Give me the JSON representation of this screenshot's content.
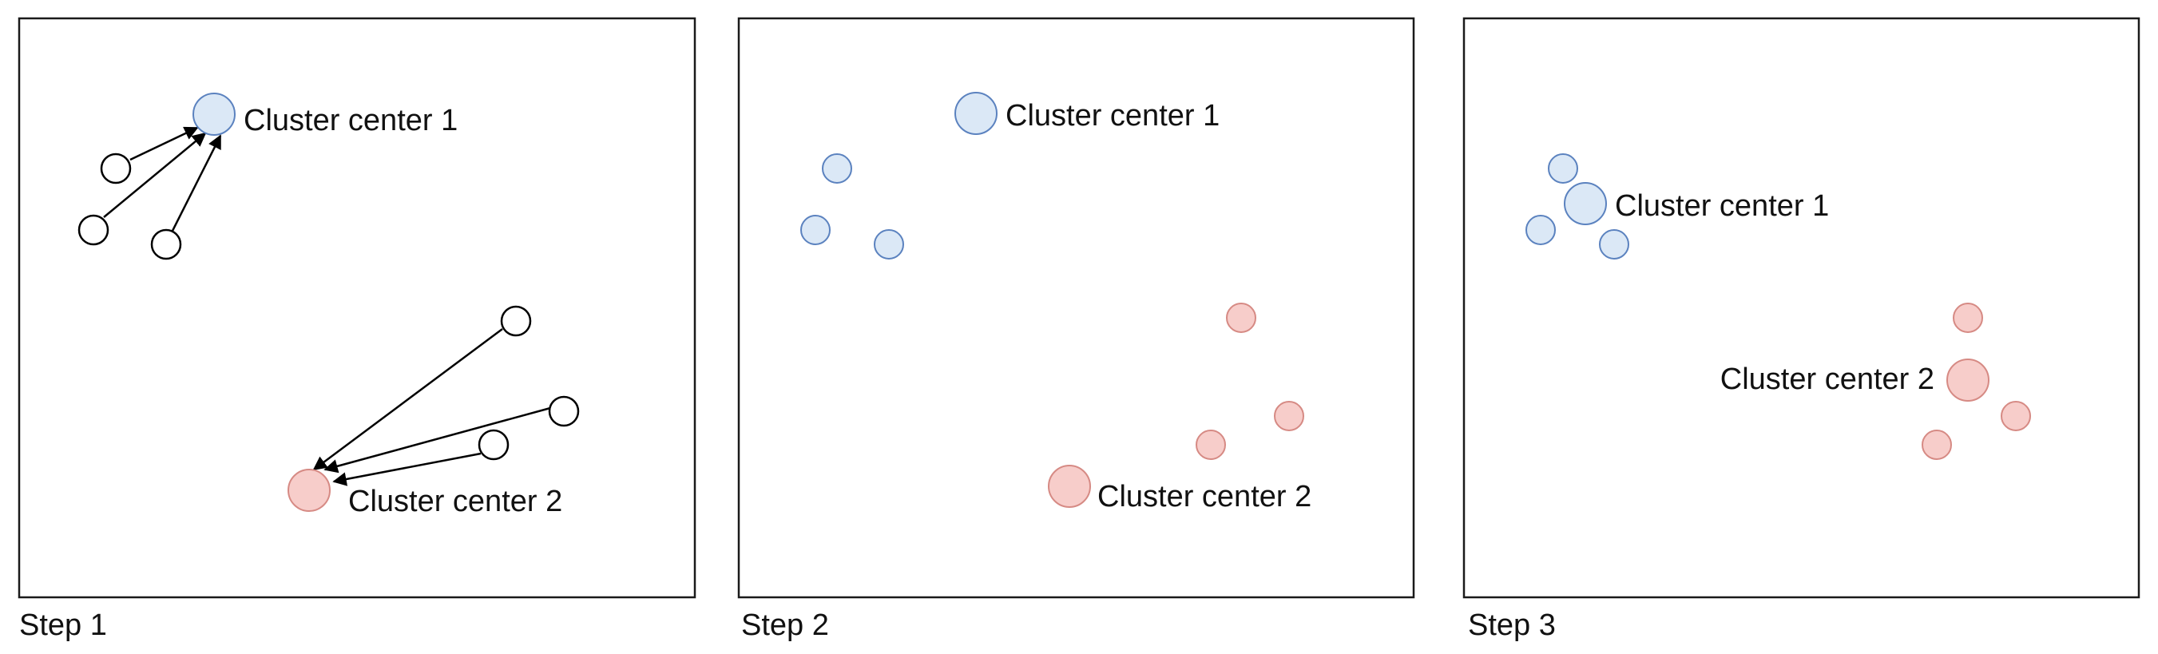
{
  "panels": [
    {
      "step_label": "Step 1",
      "center1_label": "Cluster center 1",
      "center2_label": "Cluster center 2"
    },
    {
      "step_label": "Step 2",
      "center1_label": "Cluster center 1",
      "center2_label": "Cluster center 2"
    },
    {
      "step_label": "Step 3",
      "center1_label": "Cluster center 1",
      "center2_label": "Cluster center 2"
    }
  ],
  "colors": {
    "cluster1_fill": "#dbe8f6",
    "cluster1_stroke": "#5b82bf",
    "cluster2_fill": "#f7cdca",
    "cluster2_stroke": "#d68a84",
    "unassigned_fill": "#ffffff",
    "unassigned_stroke": "#000000"
  }
}
